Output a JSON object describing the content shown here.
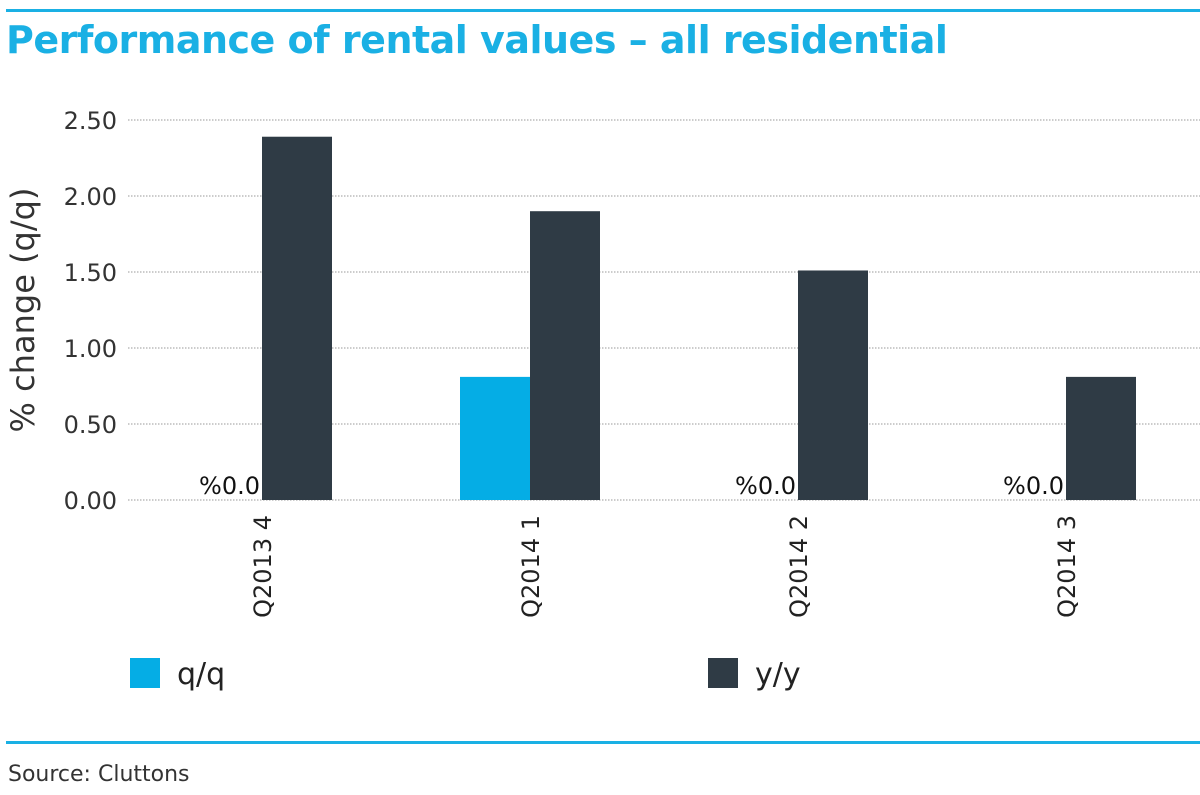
{
  "title": "Performance of rental values – all residential",
  "source": "Source: Cluttons",
  "colors": {
    "accent": "#1ab0e4",
    "qq": "#05ade5",
    "yy": "#2f3b45",
    "grid": "#9a9a9a"
  },
  "chart_data": {
    "type": "bar",
    "title": "Performance of rental values – all residential",
    "ylabel": "% change (q/q)",
    "xlabel": "",
    "categories": [
      "Q2013 4",
      "Q2014 1",
      "Q2014 2",
      "Q2014 3"
    ],
    "series": [
      {
        "name": "q/q",
        "values": [
          0.0,
          0.81,
          0.0,
          0.0
        ],
        "color": "#05ade5"
      },
      {
        "name": "y/y",
        "values": [
          2.39,
          1.9,
          1.51,
          0.81
        ],
        "color": "#2f3b45"
      }
    ],
    "data_labels": [
      "%0.0",
      "",
      "%0.0",
      "%0.0"
    ],
    "ylim": [
      0,
      2.5
    ],
    "yticks": [
      "0.00",
      "0.50",
      "1.00",
      "1.50",
      "2.00",
      "2.50"
    ],
    "grid": true,
    "legend_position": "bottom"
  }
}
